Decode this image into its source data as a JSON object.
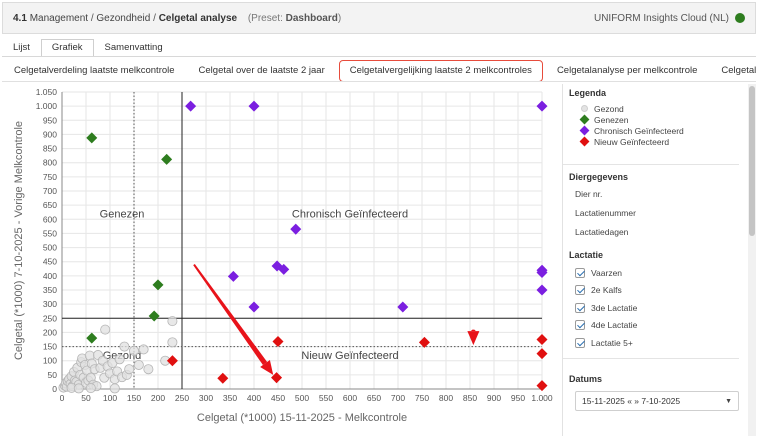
{
  "header": {
    "module": "4.1",
    "breadcrumb": [
      "Management",
      "Gezondheid",
      "Celgetal analyse"
    ],
    "preset_label": "(Preset:",
    "preset_name": "Dashboard",
    "preset_close": ")",
    "app_name": "UNIFORM Insights Cloud (NL)",
    "status_color": "#2e7d1f"
  },
  "view_tabs": [
    {
      "label": "Lijst",
      "active": false
    },
    {
      "label": "Grafiek",
      "active": true
    },
    {
      "label": "Samenvatting",
      "active": false
    }
  ],
  "sub_tabs": [
    {
      "label": "Celgetalverdeling laatste melkcontrole",
      "active": false
    },
    {
      "label": "Celgetal over de laatste 2 jaar",
      "active": false
    },
    {
      "label": "Celgetalvergelijking laatste 2 melkcontroles",
      "active": true
    },
    {
      "label": "Celgetalanalyse per melkcontrole",
      "active": false
    },
    {
      "label": "Celgetal tre",
      "active": false
    }
  ],
  "sidebar": {
    "legend_title": "Legenda",
    "legend": [
      {
        "label": "Gezond",
        "color": "#e0e0e0",
        "shape": "circle"
      },
      {
        "label": "Genezen",
        "color": "#2e7d1f",
        "shape": "diamond"
      },
      {
        "label": "Chronisch Geïnfecteerd",
        "color": "#7b1fe0",
        "shape": "diamond"
      },
      {
        "label": "Nieuw Geïnfecteerd",
        "color": "#e01010",
        "shape": "diamond"
      }
    ],
    "animal_title": "Diergegevens",
    "animal_items": [
      "Dier nr.",
      "Lactatienummer",
      "Lactatiedagen"
    ],
    "lactation_title": "Lactatie",
    "lactation_items": [
      {
        "label": "Vaarzen",
        "checked": true
      },
      {
        "label": "2e Kalfs",
        "checked": true
      },
      {
        "label": "3de Lactatie",
        "checked": true
      },
      {
        "label": "4de Lactatie",
        "checked": true
      },
      {
        "label": "Lactatie 5+",
        "checked": true
      }
    ],
    "dates_title": "Datums",
    "dates_value": "15-11-2025 « » 7-10-2025"
  },
  "chart_data": {
    "type": "scatter",
    "xlabel": "Celgetal (*1000) 15-11-2025 - Melkcontrole",
    "ylabel": "Celgetal (*1000) 7-10-2025 - Vorige Melkcontrole",
    "xlim": [
      0,
      1000
    ],
    "ylim": [
      0,
      1050
    ],
    "x_ticks": [
      0,
      50,
      100,
      150,
      200,
      250,
      300,
      350,
      400,
      450,
      500,
      550,
      600,
      650,
      700,
      750,
      800,
      850,
      900,
      950,
      1000
    ],
    "x_tick_labels": [
      "0",
      "50",
      "100",
      "150",
      "200",
      "250",
      "300",
      "350",
      "400",
      "450",
      "500",
      "550",
      "600",
      "650",
      "700",
      "750",
      "800",
      "850",
      "900",
      "950",
      "1.000"
    ],
    "y_ticks": [
      0,
      50,
      100,
      150,
      200,
      250,
      300,
      350,
      400,
      450,
      500,
      550,
      600,
      650,
      700,
      750,
      800,
      850,
      900,
      950,
      1000,
      1050
    ],
    "y_tick_labels": [
      "0",
      "50",
      "100",
      "150",
      "200",
      "250",
      "300",
      "350",
      "400",
      "450",
      "500",
      "550",
      "600",
      "650",
      "700",
      "750",
      "800",
      "850",
      "900",
      "950",
      "1.000",
      "1.050"
    ],
    "thresholds": {
      "x_solid": 250,
      "y_solid": 250,
      "x_dotted": 150,
      "y_dotted": 150
    },
    "quadrant_labels": [
      {
        "text": "Genezen",
        "x": 125,
        "y": 620
      },
      {
        "text": "Chronisch Geïnfecteerd",
        "x": 600,
        "y": 620
      },
      {
        "text": "Gezond",
        "x": 125,
        "y": 120
      },
      {
        "text": "Nieuw Geïnfecteerd",
        "x": 600,
        "y": 120
      }
    ],
    "series": [
      {
        "name": "Gezond",
        "color": "#e0e0e0",
        "shape": "circle",
        "points": [
          [
            3,
            5
          ],
          [
            6,
            12
          ],
          [
            8,
            20
          ],
          [
            10,
            8
          ],
          [
            12,
            28
          ],
          [
            15,
            35
          ],
          [
            18,
            18
          ],
          [
            20,
            45
          ],
          [
            22,
            10
          ],
          [
            25,
            60
          ],
          [
            27,
            30
          ],
          [
            30,
            25
          ],
          [
            32,
            75
          ],
          [
            35,
            15
          ],
          [
            38,
            50
          ],
          [
            40,
            95
          ],
          [
            42,
            108
          ],
          [
            45,
            40
          ],
          [
            48,
            85
          ],
          [
            50,
            22
          ],
          [
            52,
            65
          ],
          [
            55,
            30
          ],
          [
            58,
            118
          ],
          [
            60,
            40
          ],
          [
            62,
            90
          ],
          [
            65,
            15
          ],
          [
            68,
            70
          ],
          [
            72,
            10
          ],
          [
            75,
            120
          ],
          [
            80,
            75
          ],
          [
            85,
            100
          ],
          [
            88,
            40
          ],
          [
            90,
            210
          ],
          [
            95,
            80
          ],
          [
            100,
            55
          ],
          [
            105,
            92
          ],
          [
            110,
            35
          ],
          [
            115,
            62
          ],
          [
            120,
            105
          ],
          [
            125,
            42
          ],
          [
            130,
            150
          ],
          [
            135,
            50
          ],
          [
            140,
            70
          ],
          [
            150,
            135
          ],
          [
            160,
            85
          ],
          [
            170,
            140
          ],
          [
            180,
            70
          ],
          [
            215,
            100
          ],
          [
            230,
            240
          ],
          [
            230,
            165
          ],
          [
            20,
            4
          ],
          [
            35,
            2
          ],
          [
            60,
            3
          ],
          [
            110,
            2
          ]
        ]
      },
      {
        "name": "Genezen",
        "color": "#2e7d1f",
        "shape": "diamond",
        "points": [
          [
            62,
            888
          ],
          [
            218,
            812
          ],
          [
            200,
            368
          ],
          [
            192,
            258
          ],
          [
            62,
            180
          ]
        ]
      },
      {
        "name": "Chronisch Geïnfecteerd",
        "color": "#7b1fe0",
        "shape": "diamond",
        "points": [
          [
            268,
            1000
          ],
          [
            400,
            1000
          ],
          [
            1000,
            1000
          ],
          [
            487,
            565
          ],
          [
            448,
            435
          ],
          [
            462,
            423
          ],
          [
            357,
            398
          ],
          [
            400,
            290
          ],
          [
            710,
            290
          ],
          [
            1000,
            420
          ],
          [
            1000,
            412
          ],
          [
            1000,
            350
          ]
        ]
      },
      {
        "name": "Nieuw Geïnfecteerd",
        "color": "#e01010",
        "shape": "diamond",
        "points": [
          [
            230,
            100
          ],
          [
            447,
            40
          ],
          [
            335,
            38
          ],
          [
            450,
            168
          ],
          [
            755,
            165
          ],
          [
            1000,
            175
          ],
          [
            1000,
            125
          ],
          [
            1000,
            12
          ]
        ]
      }
    ],
    "callouts": [
      {
        "from": [
          275,
          440
        ],
        "to": [
          440,
          50
        ]
      },
      {
        "from": [
          857,
          210
        ],
        "to": [
          857,
          155
        ]
      }
    ]
  }
}
